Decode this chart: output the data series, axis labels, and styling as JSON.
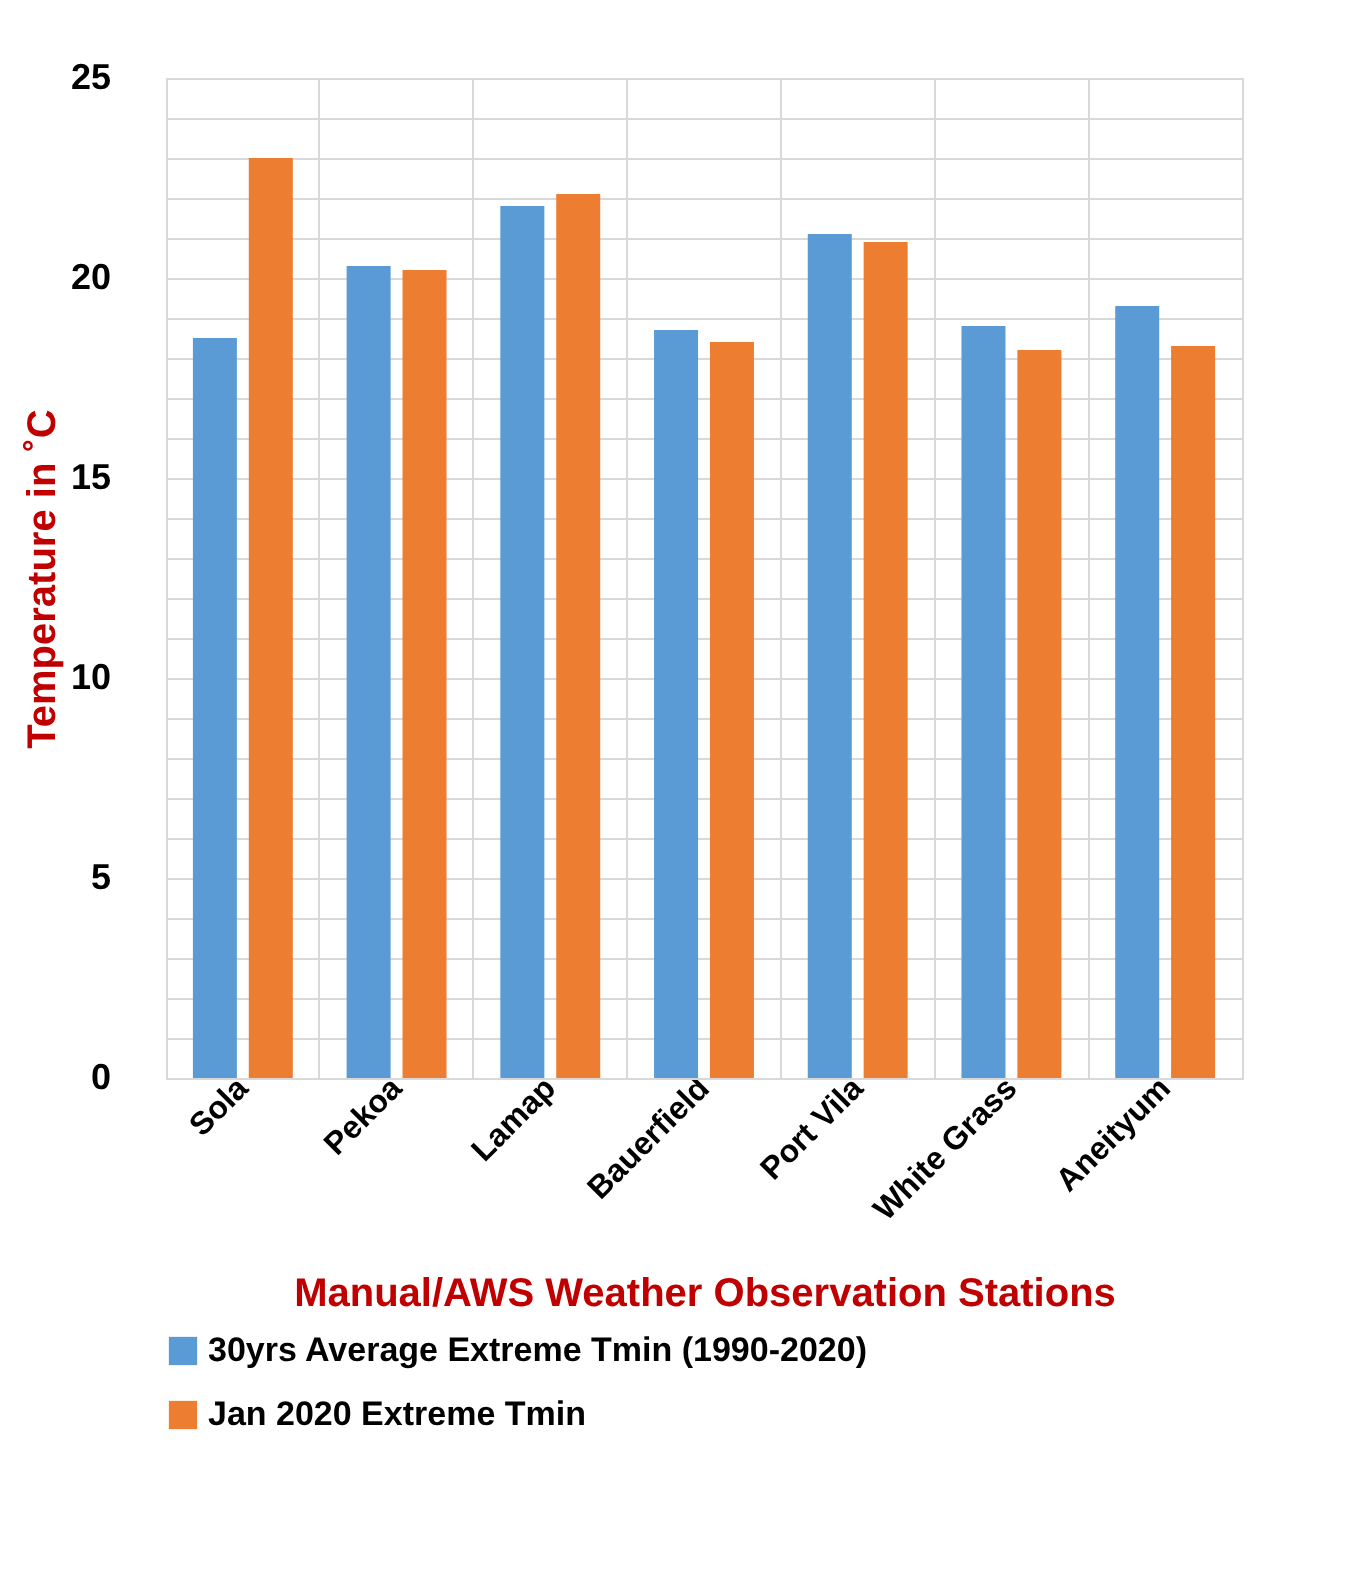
{
  "chart_data": {
    "type": "bar",
    "xlabel": "Manual/AWS Weather Observation Stations",
    "ylabel": "Temperature in ˚C",
    "categories": [
      "Sola",
      "Pekoa",
      "Lamap",
      "Bauerfield",
      "Port Vila",
      "White Grass",
      "Aneityum"
    ],
    "series": [
      {
        "name": "30yrs Average Extreme Tmin (1990-2020)",
        "color": "#5b9bd5",
        "values": [
          18.5,
          20.3,
          21.8,
          18.7,
          21.1,
          18.8,
          19.3
        ]
      },
      {
        "name": "Jan 2020 Extreme Tmin",
        "color": "#ed7d31",
        "values": [
          23.0,
          20.2,
          22.1,
          18.4,
          20.9,
          18.2,
          18.3
        ]
      }
    ],
    "ylim": [
      0,
      25
    ],
    "yticks": [
      0,
      {
        "value": 1,
        "label": null
      },
      {
        "value": 2,
        "label": null
      },
      {
        "value": 3,
        "label": null
      },
      {
        "value": 4,
        "label": null
      },
      5,
      {
        "value": 6,
        "label": null
      },
      {
        "value": 7,
        "label": null
      },
      {
        "value": 8,
        "label": null
      },
      {
        "value": 9,
        "label": null
      },
      10,
      {
        "value": 11,
        "label": null
      },
      {
        "value": 12,
        "label": null
      },
      {
        "value": 13,
        "label": null
      },
      {
        "value": 14,
        "label": null
      },
      15,
      {
        "value": 16,
        "label": null
      },
      {
        "value": 17,
        "label": null
      },
      {
        "value": 18,
        "label": null
      },
      {
        "value": 19,
        "label": null
      },
      20,
      {
        "value": 21,
        "label": null
      },
      {
        "value": 22,
        "label": null
      },
      {
        "value": 23,
        "label": null
      },
      {
        "value": 24,
        "label": null
      },
      25
    ],
    "grid": true,
    "legend": "bottom"
  }
}
